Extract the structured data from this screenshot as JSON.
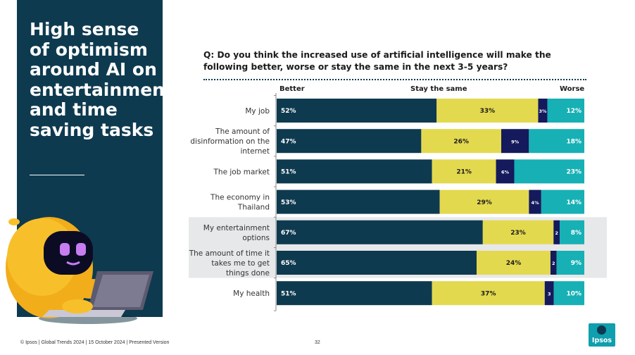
{
  "sidebar": {
    "title": "High sense of optimism around AI on entertainment and time saving tasks"
  },
  "question": "Q: Do you think the increased use of artificial intelligence will make the following better, worse or stay the same in the next 3-5 years?",
  "columns": {
    "better": "Better",
    "same": "Stay the same",
    "worse": "Worse"
  },
  "colors": {
    "better": "#0e3a4f",
    "same": "#e3d94f",
    "worse_dark": "#141a5c",
    "worse": "#17b0b5",
    "highlight": "#e7e8ea"
  },
  "chart_data": {
    "type": "bar",
    "stacked": true,
    "orientation": "horizontal",
    "categories": [
      "My job",
      "The amount of disinformation on the internet",
      "The job market",
      "The economy in Thailand",
      "My entertainment options",
      "The amount of time it takes me to get things done",
      "My health"
    ],
    "series": [
      {
        "name": "Better",
        "values": [
          52,
          47,
          51,
          53,
          67,
          65,
          51
        ],
        "labels": [
          "52%",
          "47%",
          "51%",
          "53%",
          "67%",
          "65%",
          "51%"
        ]
      },
      {
        "name": "Stay the same",
        "values": [
          33,
          26,
          21,
          29,
          23,
          24,
          37
        ],
        "labels": [
          "33%",
          "26%",
          "21%",
          "29%",
          "23%",
          "24%",
          "37%"
        ]
      },
      {
        "values": [
          3,
          9,
          6,
          4,
          2,
          2,
          3
        ],
        "labels": [
          "3%",
          "9%",
          "6%",
          "4%",
          "2",
          "2",
          "3"
        ]
      },
      {
        "name": "Worse",
        "values": [
          12,
          18,
          23,
          14,
          8,
          9,
          10
        ],
        "labels": [
          "12%",
          "18%",
          "23%",
          "14%",
          "8%",
          "9%",
          "10%"
        ]
      }
    ],
    "highlighted": [
      "My entertainment options",
      "The amount of time it takes me to get things done"
    ],
    "xlim": [
      0,
      100
    ]
  },
  "footer": {
    "source": "© Ipsos | Global Trends 2024 | 15 October 2024 | Presented Version",
    "page": "32",
    "logo": "Ipsos"
  }
}
